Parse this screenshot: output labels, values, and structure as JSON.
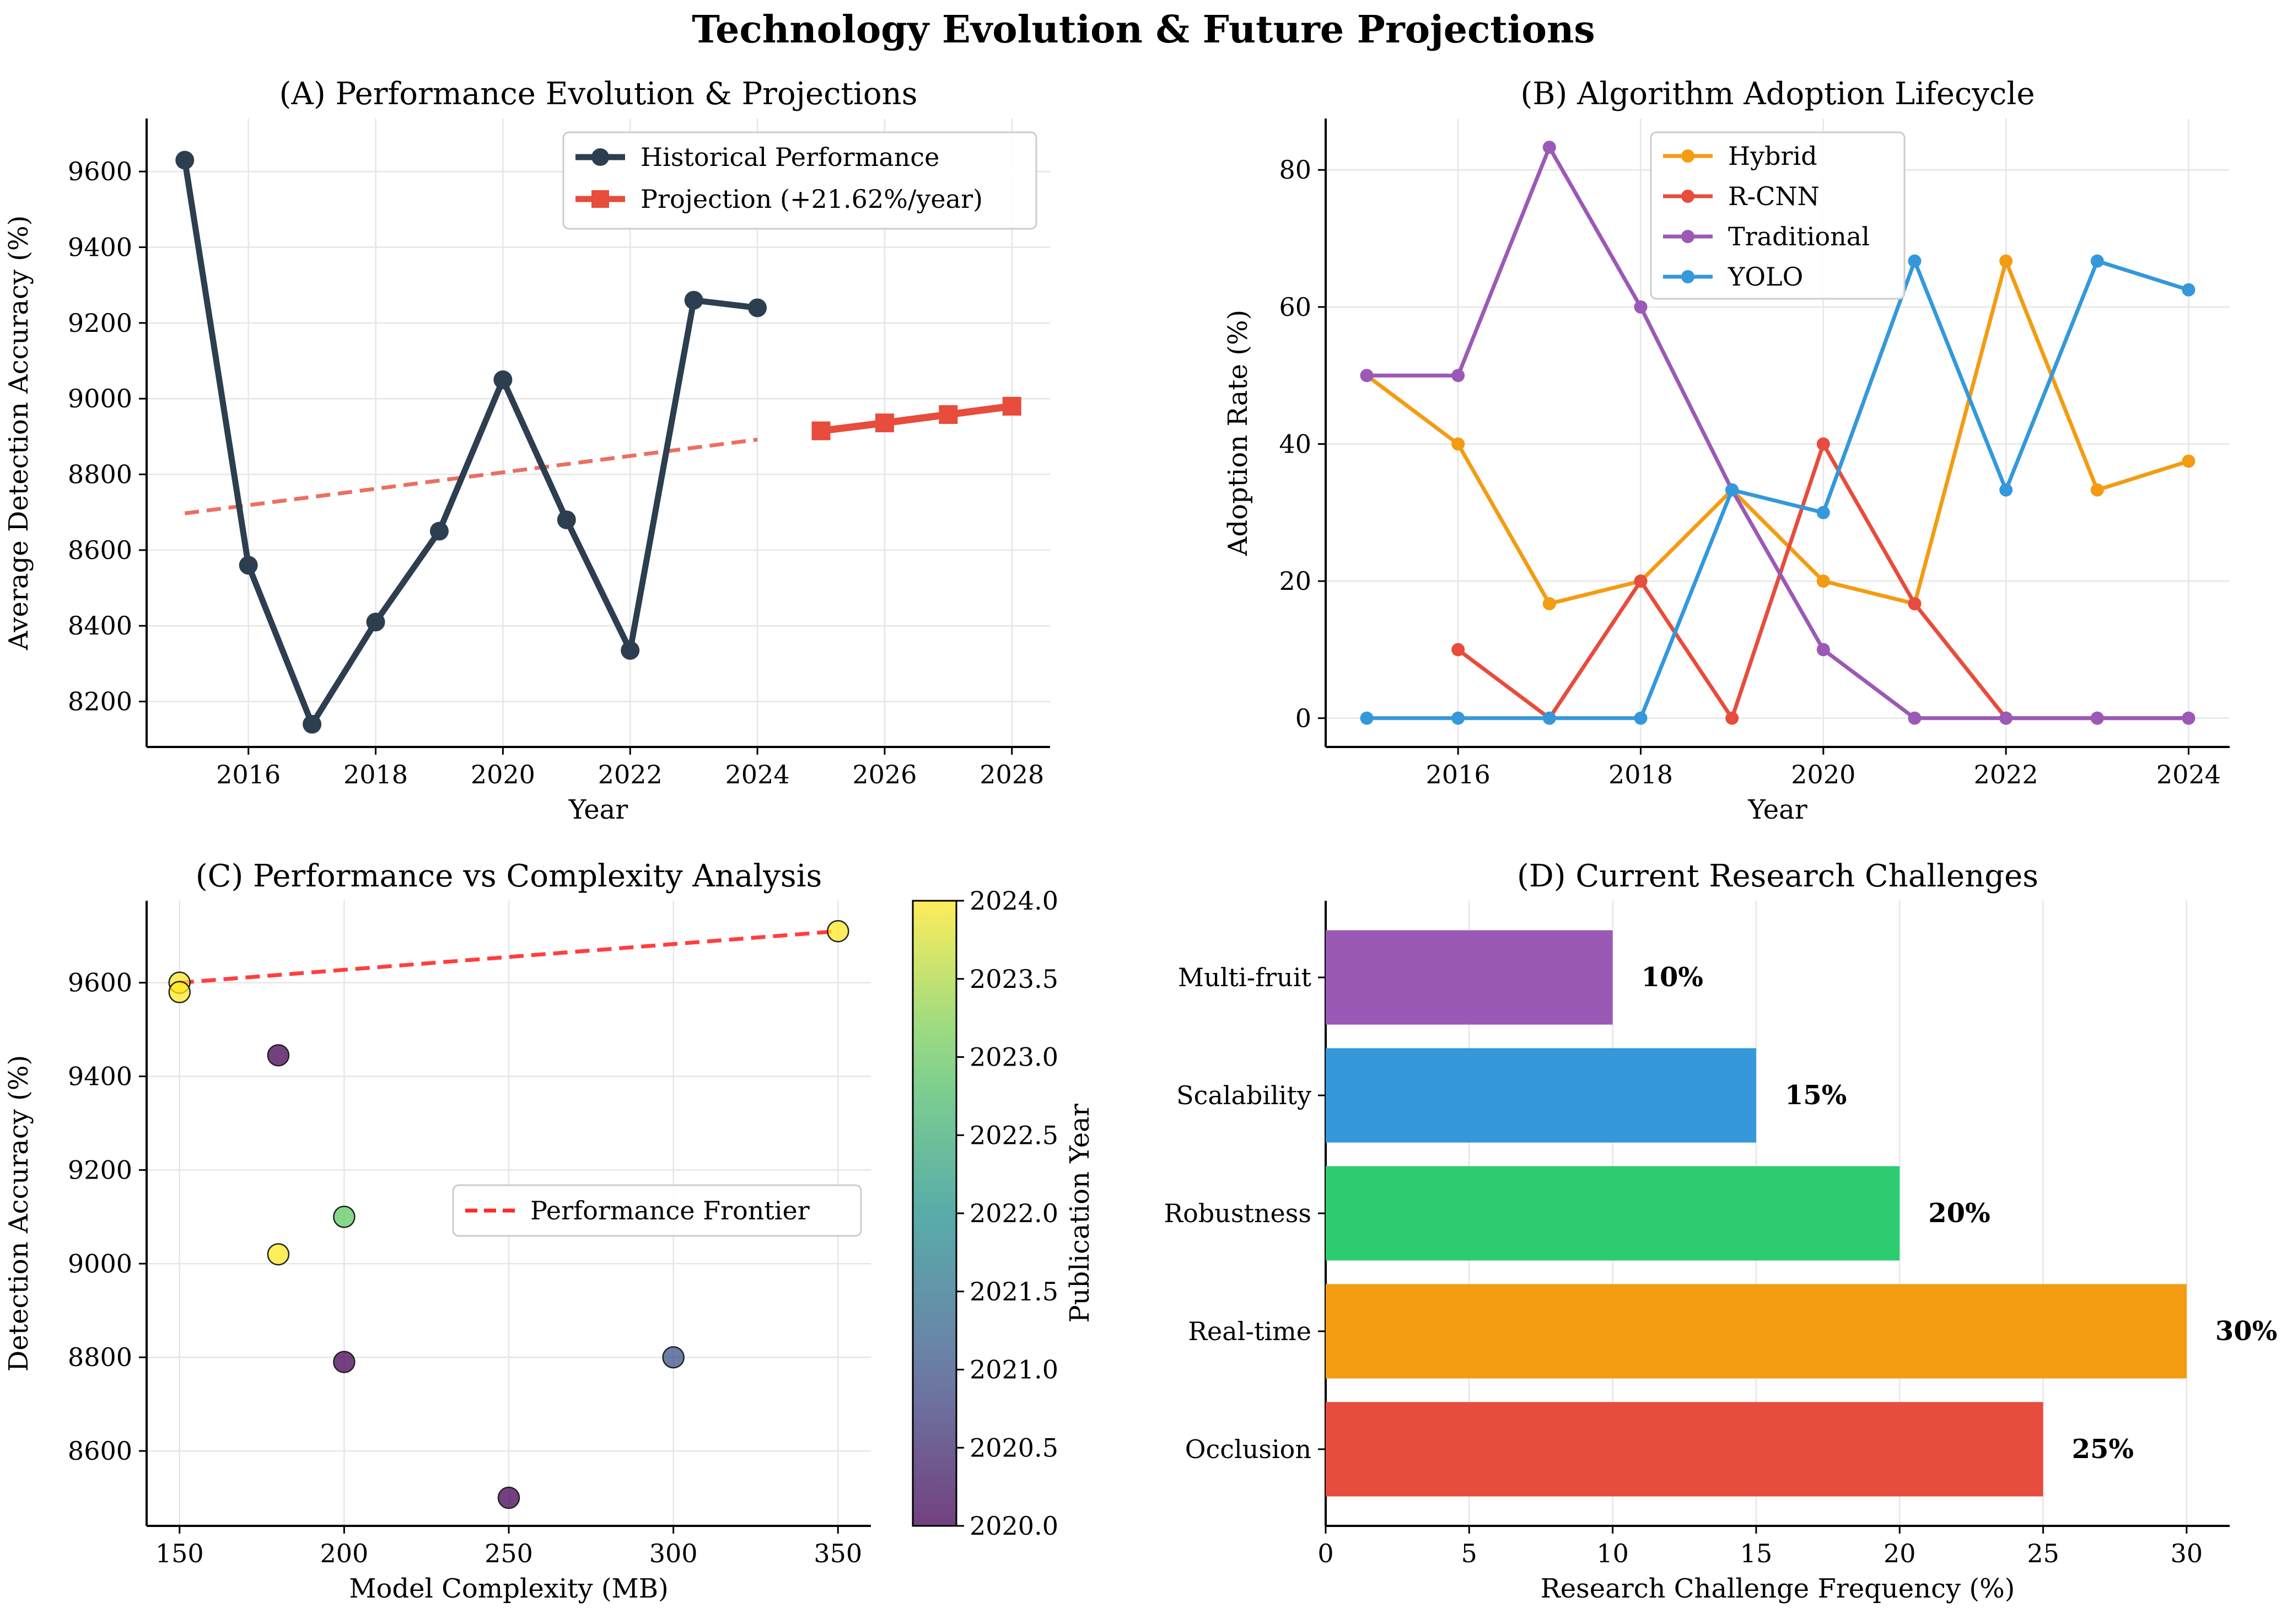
{
  "figure": {
    "title": "Technology Evolution & Future Projections"
  },
  "chart_data": [
    {
      "id": "A",
      "type": "line",
      "title": "(A) Performance Evolution & Projections",
      "xlabel": "Year",
      "ylabel": "Average Detection Accuracy (%)",
      "xlim": [
        2014.4,
        2028.6
      ],
      "ylim": [
        8080,
        9740
      ],
      "xticks": [
        2016,
        2018,
        2020,
        2022,
        2024,
        2026,
        2028
      ],
      "yticks": [
        8200,
        8400,
        8600,
        8800,
        9000,
        9200,
        9400,
        9600
      ],
      "grid": true,
      "legend_position": "top-right",
      "series": [
        {
          "name": "Historical Performance",
          "color": "#2c3e50",
          "marker": "circle",
          "x": [
            2015,
            2016,
            2017,
            2018,
            2019,
            2020,
            2021,
            2022,
            2023,
            2024
          ],
          "values": [
            9630,
            8560,
            8140,
            8410,
            8650,
            9050,
            8680,
            8335,
            9260,
            9240
          ]
        },
        {
          "name": "Projection (+21.62%/year)",
          "color": "#e74c3c",
          "marker": "square",
          "x": [
            2025,
            2026,
            2027,
            2028
          ],
          "values": [
            8915,
            8936,
            8958,
            8980
          ]
        }
      ],
      "trendline": {
        "color": "#e74c3c",
        "style": "dashed",
        "x": [
          2015,
          2024
        ],
        "values": [
          8697,
          8892
        ]
      }
    },
    {
      "id": "B",
      "type": "line",
      "title": "(B) Algorithm Adoption Lifecycle",
      "xlabel": "Year",
      "ylabel": "Adoption Rate (%)",
      "xlim": [
        2014.55,
        2024.45
      ],
      "ylim": [
        -4.2,
        87.5
      ],
      "xticks": [
        2016,
        2018,
        2020,
        2022,
        2024
      ],
      "yticks": [
        0,
        20,
        40,
        60,
        80
      ],
      "grid": true,
      "legend_position": "top-center",
      "x": [
        2015,
        2016,
        2017,
        2018,
        2019,
        2020,
        2021,
        2022,
        2023,
        2024
      ],
      "series": [
        {
          "name": "Hybrid",
          "color": "#f39c12",
          "values": [
            50,
            40,
            16.7,
            20,
            33.3,
            20,
            16.7,
            66.7,
            33.3,
            37.5
          ]
        },
        {
          "name": "R-CNN",
          "color": "#e74c3c",
          "values": [
            null,
            10,
            0,
            20,
            0,
            40,
            16.7,
            0,
            0,
            0
          ]
        },
        {
          "name": "Traditional",
          "color": "#9b59b6",
          "values": [
            50,
            50,
            83.3,
            60,
            33.3,
            10,
            0,
            0,
            0,
            0
          ]
        },
        {
          "name": "YOLO",
          "color": "#3498db",
          "values": [
            0,
            0,
            0,
            0,
            33.3,
            30,
            66.7,
            33.3,
            66.7,
            62.5
          ]
        }
      ]
    },
    {
      "id": "C",
      "type": "scatter",
      "title": "(C) Performance vs Complexity Analysis",
      "xlabel": "Model Complexity (MB)",
      "ylabel": "Detection Accuracy (%)",
      "xlim": [
        140,
        360
      ],
      "ylim": [
        8440,
        9775
      ],
      "xticks": [
        150,
        200,
        250,
        300,
        350
      ],
      "yticks": [
        8600,
        8800,
        9000,
        9200,
        9400,
        9600
      ],
      "grid": true,
      "legend_position": "center-right",
      "colorbar": {
        "label": "Publication Year",
        "range": [
          2020.0,
          2024.0
        ],
        "ticks": [
          "2020.0",
          "2020.5",
          "2021.0",
          "2021.5",
          "2022.0",
          "2022.5",
          "2023.0",
          "2023.5",
          "2024.0"
        ],
        "colormap": "viridis"
      },
      "points": [
        {
          "x": 150,
          "y": 9600,
          "year": 2024
        },
        {
          "x": 150,
          "y": 9580,
          "year": 2024
        },
        {
          "x": 180,
          "y": 9445,
          "year": 2020
        },
        {
          "x": 200,
          "y": 9100,
          "year": 2023
        },
        {
          "x": 180,
          "y": 9020,
          "year": 2024
        },
        {
          "x": 200,
          "y": 8790,
          "year": 2020
        },
        {
          "x": 300,
          "y": 8800,
          "year": 2021
        },
        {
          "x": 250,
          "y": 8500,
          "year": 2020
        },
        {
          "x": 350,
          "y": 9710,
          "year": 2024
        }
      ],
      "frontier": {
        "name": "Performance Frontier",
        "color": "#ff2a2a",
        "style": "dashed",
        "x": [
          150,
          350
        ],
        "values": [
          9600,
          9710
        ]
      }
    },
    {
      "id": "D",
      "type": "bar",
      "orientation": "horizontal",
      "title": "(D) Current Research Challenges",
      "xlabel": "Research Challenge Frequency (%)",
      "ylabel": "",
      "xlim": [
        0,
        31.5
      ],
      "xticks": [
        0,
        5,
        10,
        15,
        20,
        25,
        30
      ],
      "grid": true,
      "categories": [
        "Occlusion",
        "Real-time",
        "Robustness",
        "Scalability",
        "Multi-fruit"
      ],
      "values": [
        25,
        30,
        20,
        15,
        10
      ],
      "data_labels": [
        "25%",
        "30%",
        "20%",
        "15%",
        "10%"
      ],
      "colors": [
        "#e74c3c",
        "#f39c12",
        "#2ecc71",
        "#3498db",
        "#9b59b6"
      ]
    }
  ]
}
